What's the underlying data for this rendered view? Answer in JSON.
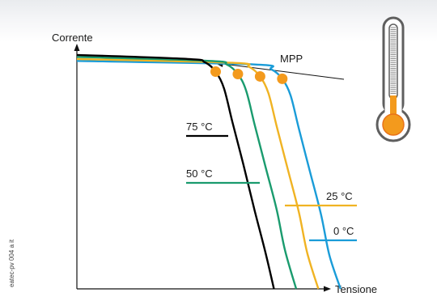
{
  "credit": "eatec-pv 004 a it",
  "chart_data": {
    "type": "line",
    "xlabel": "Tensione",
    "ylabel": "Corrente",
    "xlim": [
      0,
      100
    ],
    "ylim": [
      0,
      100
    ],
    "annotation": "MPP",
    "series": [
      {
        "name": "75 °C",
        "color": "#000000",
        "points": [
          [
            0,
            98
          ],
          [
            40,
            96.3
          ],
          [
            46,
            95
          ],
          [
            50,
            91
          ],
          [
            53,
            84
          ],
          [
            56,
            70
          ],
          [
            60,
            52
          ],
          [
            64,
            33
          ],
          [
            68,
            15
          ],
          [
            71,
            0
          ]
        ]
      },
      {
        "name": "50 °C",
        "color": "#1a9b6e",
        "points": [
          [
            0,
            97.2
          ],
          [
            48,
            95.5
          ],
          [
            54,
            94
          ],
          [
            58,
            90
          ],
          [
            61,
            83
          ],
          [
            64,
            69
          ],
          [
            68,
            51
          ],
          [
            72,
            33
          ],
          [
            75,
            16
          ],
          [
            79,
            0
          ]
        ]
      },
      {
        "name": "25 °C",
        "color": "#f0b323",
        "points": [
          [
            0,
            96.3
          ],
          [
            56,
            94.7
          ],
          [
            62,
            93
          ],
          [
            66,
            89
          ],
          [
            69,
            82
          ],
          [
            72,
            68
          ],
          [
            76,
            50
          ],
          [
            80,
            32
          ],
          [
            83,
            15
          ],
          [
            87,
            0
          ]
        ]
      },
      {
        "name": "0 °C",
        "color": "#1a9cd8",
        "points": [
          [
            0,
            95.5
          ],
          [
            64,
            94
          ],
          [
            70,
            92
          ],
          [
            74,
            88
          ],
          [
            77,
            81
          ],
          [
            80,
            67
          ],
          [
            84,
            49
          ],
          [
            88,
            31
          ],
          [
            91,
            14
          ],
          [
            95,
            0
          ]
        ]
      }
    ],
    "mpp_points": [
      {
        "series": "75 °C",
        "x": 50,
        "y": 91
      },
      {
        "series": "50 °C",
        "x": 58,
        "y": 90
      },
      {
        "series": "25 °C",
        "x": 66,
        "y": 89
      },
      {
        "series": "0 °C",
        "x": 74,
        "y": 88
      }
    ],
    "mpp_color": "#f39a1d",
    "icon": "thermometer-icon",
    "thermometer_colors": {
      "fill": "#f39a1d",
      "frame": "#5f5f5f",
      "bulb_rim": "#e8731a"
    }
  }
}
